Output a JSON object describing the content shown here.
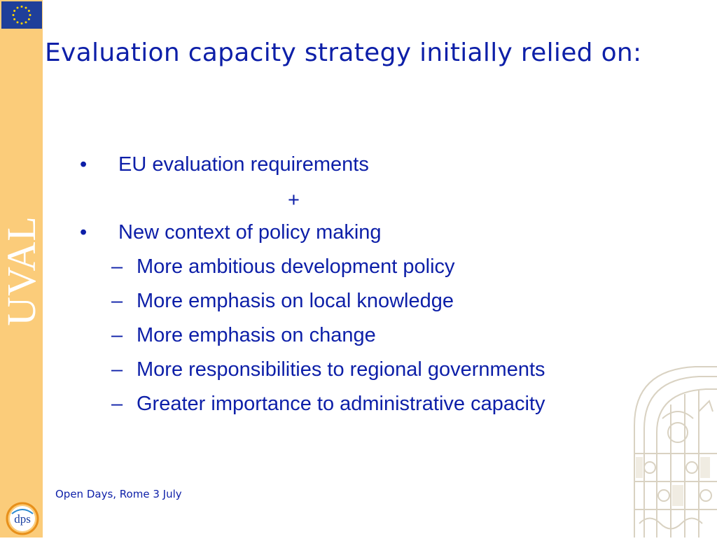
{
  "slide": {
    "title": "Evaluation capacity strategy initially relied on:",
    "sidebar_word": "UVAL",
    "bullet_symbol": "•",
    "dash_symbol": "–",
    "bullets": [
      {
        "text": "EU evaluation requirements"
      },
      {
        "text": "New context of policy making"
      }
    ],
    "plus_sign": "+",
    "sub_items": [
      "More ambitious development policy",
      "More emphasis on local knowledge",
      "More emphasis on change",
      "More responsibilities to regional governments",
      "Greater importance to administrative capacity"
    ],
    "footer": "Open Days, Rome 3 July",
    "logo_text": "dps"
  },
  "colors": {
    "accent_text": "#0d1fa8",
    "sidebar": "#fbcc7a",
    "eu_blue": "#1f3f9a",
    "eu_stars": "#ffd400"
  },
  "icons": {
    "eu_flag": "eu-flag-icon",
    "logo": "dps-logo-icon",
    "decoration": "ornamental-gate-icon"
  }
}
